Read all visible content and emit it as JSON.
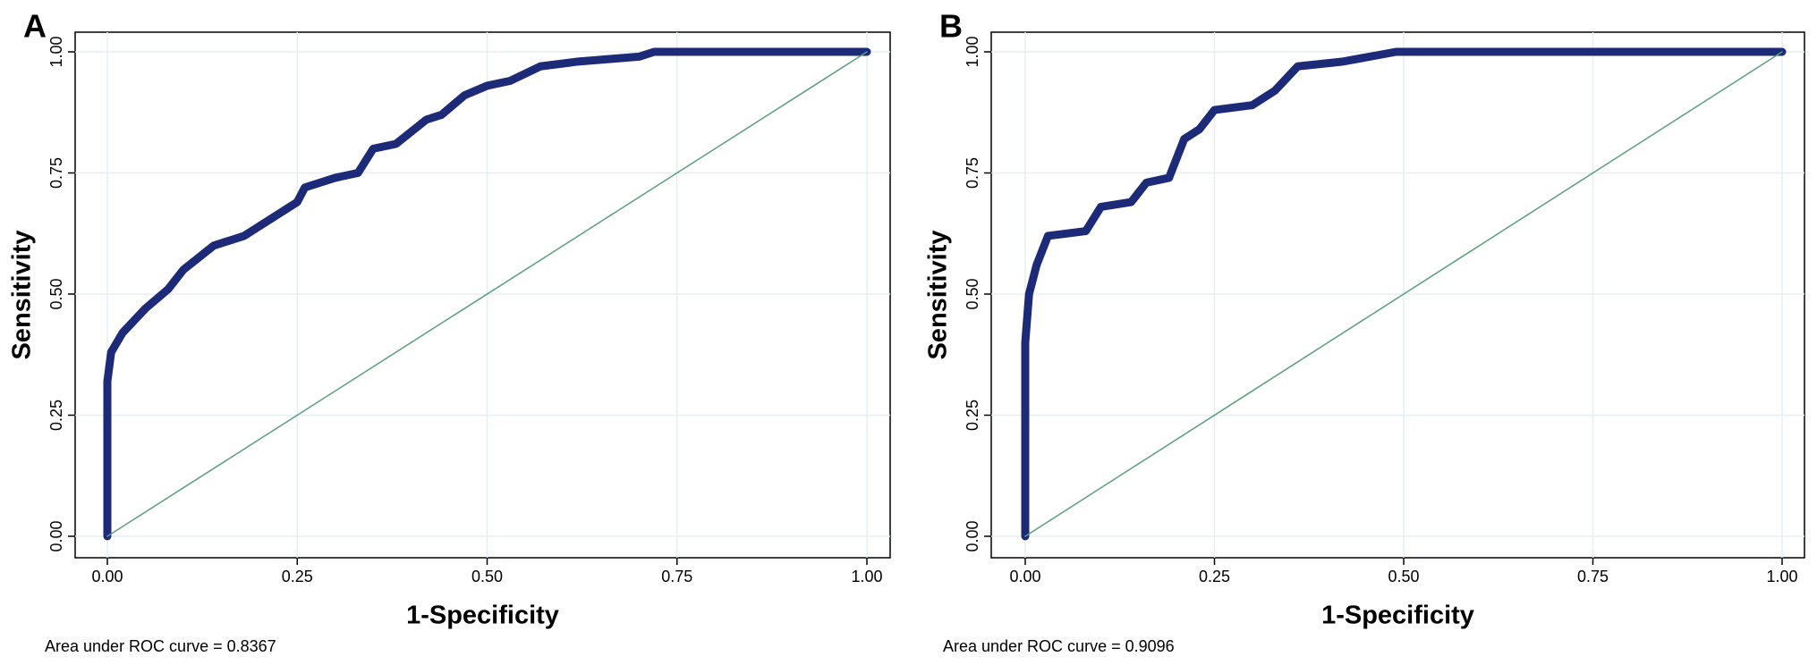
{
  "chart_data": [
    {
      "type": "line",
      "panel_label": "A",
      "x_label": "1-Specificity",
      "y_label": "Sensitivity",
      "annotation": "Area under ROC curve = 0.8367",
      "xlim": [
        0,
        1
      ],
      "ylim": [
        0,
        1
      ],
      "grid": true,
      "xticks": [
        {
          "value": 0,
          "label": "0.00"
        },
        {
          "value": 0.25,
          "label": "0.25"
        },
        {
          "value": 0.5,
          "label": "0.50"
        },
        {
          "value": 0.75,
          "label": "0.75"
        },
        {
          "value": 1,
          "label": "1.00"
        }
      ],
      "yticks": [
        {
          "value": 0,
          "label": "0.00"
        },
        {
          "value": 0.25,
          "label": "0.25"
        },
        {
          "value": 0.5,
          "label": "0.50"
        },
        {
          "value": 0.75,
          "label": "0.75"
        },
        {
          "value": 1,
          "label": "1.00"
        }
      ],
      "series": [
        {
          "color": "#1c2a78",
          "x": [
            0,
            0,
            0.005,
            0.02,
            0.05,
            0.08,
            0.1,
            0.14,
            0.18,
            0.22,
            0.25,
            0.26,
            0.3,
            0.33,
            0.35,
            0.38,
            0.42,
            0.44,
            0.47,
            0.5,
            0.53,
            0.57,
            0.62,
            0.7,
            0.72,
            1
          ],
          "values": [
            0,
            0.32,
            0.38,
            0.42,
            0.47,
            0.51,
            0.55,
            0.6,
            0.62,
            0.66,
            0.69,
            0.72,
            0.74,
            0.75,
            0.8,
            0.81,
            0.86,
            0.87,
            0.91,
            0.93,
            0.94,
            0.97,
            0.98,
            0.99,
            1,
            1
          ]
        },
        {
          "color": "#5a9e7c",
          "x": [
            0,
            1
          ],
          "values": [
            0,
            1
          ]
        }
      ]
    },
    {
      "type": "line",
      "panel_label": "B",
      "x_label": "1-Specificity",
      "y_label": "Sensitivity",
      "annotation": "Area under ROC curve = 0.9096",
      "xlim": [
        0,
        1
      ],
      "ylim": [
        0,
        1
      ],
      "grid": true,
      "xticks": [
        {
          "value": 0,
          "label": "0.00"
        },
        {
          "value": 0.25,
          "label": "0.25"
        },
        {
          "value": 0.5,
          "label": "0.50"
        },
        {
          "value": 0.75,
          "label": "0.75"
        },
        {
          "value": 1,
          "label": "1.00"
        }
      ],
      "yticks": [
        {
          "value": 0,
          "label": "0.00"
        },
        {
          "value": 0.25,
          "label": "0.25"
        },
        {
          "value": 0.5,
          "label": "0.50"
        },
        {
          "value": 0.75,
          "label": "0.75"
        },
        {
          "value": 1,
          "label": "1.00"
        }
      ],
      "series": [
        {
          "color": "#1c2a78",
          "x": [
            0,
            0,
            0.005,
            0.015,
            0.03,
            0.08,
            0.1,
            0.14,
            0.16,
            0.19,
            0.21,
            0.23,
            0.25,
            0.3,
            0.33,
            0.36,
            0.42,
            0.49,
            1
          ],
          "values": [
            0,
            0.4,
            0.5,
            0.56,
            0.62,
            0.63,
            0.68,
            0.69,
            0.73,
            0.74,
            0.82,
            0.84,
            0.88,
            0.89,
            0.92,
            0.97,
            0.98,
            1,
            1
          ]
        },
        {
          "color": "#5a9e7c",
          "x": [
            0,
            1
          ],
          "values": [
            0,
            1
          ]
        }
      ]
    }
  ]
}
